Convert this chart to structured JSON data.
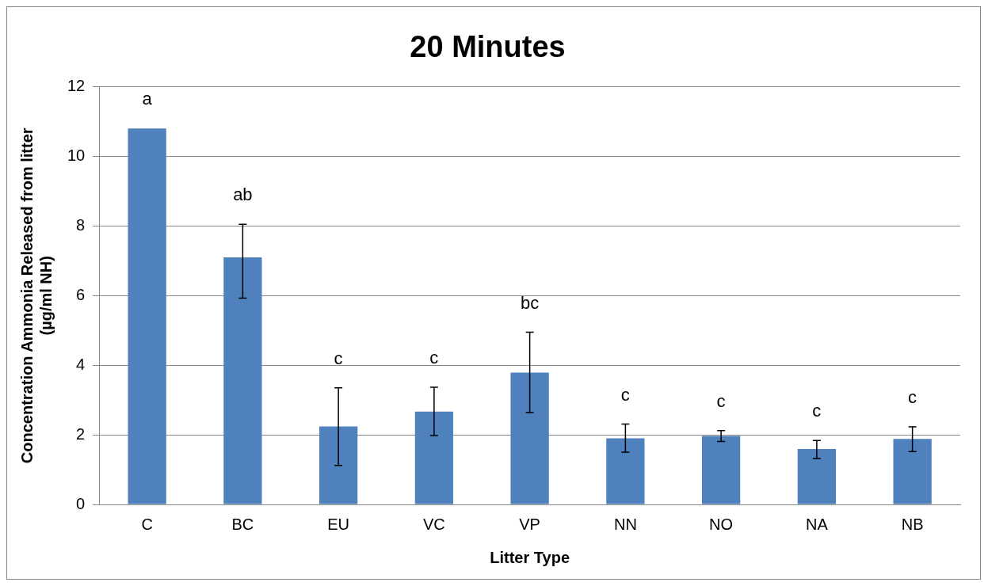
{
  "chart_data": {
    "type": "bar",
    "title": "20 Minutes",
    "xlabel": "Litter Type",
    "ylabel": "Concentration Ammonia Released from litter\n(µg/ml NH)",
    "categories": [
      "C",
      "BC",
      "EU",
      "VC",
      "VP",
      "NN",
      "NO",
      "NA",
      "NB"
    ],
    "values": [
      10.8,
      7.1,
      2.24,
      2.67,
      3.79,
      1.9,
      1.97,
      1.59,
      1.88
    ],
    "errors": [
      null,
      [
        5.93,
        8.05
      ],
      [
        1.12,
        3.35
      ],
      [
        1.98,
        3.37
      ],
      [
        2.64,
        4.95
      ],
      [
        1.5,
        2.31
      ],
      [
        1.81,
        2.12
      ],
      [
        1.32,
        1.84
      ],
      [
        1.52,
        2.23
      ]
    ],
    "color": "#4f81bd",
    "ylim": [
      0,
      12
    ],
    "yticks": [
      0,
      2,
      4,
      6,
      8,
      10,
      12
    ],
    "grid": "y",
    "legend": false,
    "annotations": [
      "a",
      "ab",
      "c",
      "c",
      "bc",
      "c",
      "c",
      "c",
      "c"
    ]
  }
}
